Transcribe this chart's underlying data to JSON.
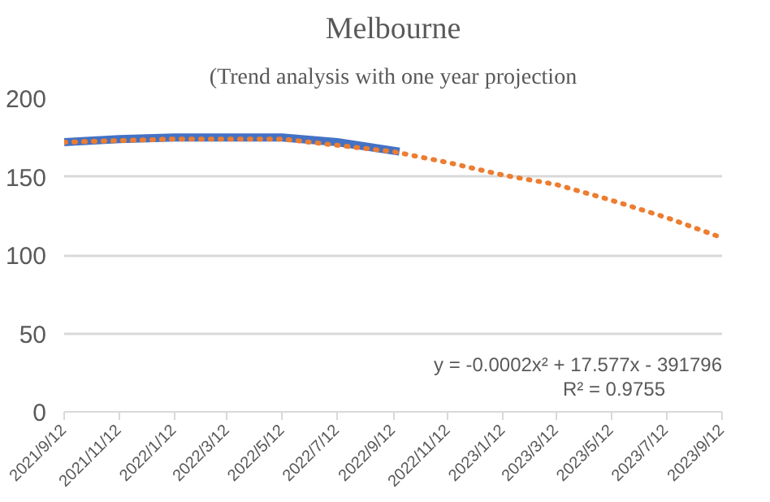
{
  "chart_data": {
    "type": "line",
    "title": "Melbourne",
    "subtitle": "(Trend analysis with one year projection",
    "xlim": [
      "2021-09-12",
      "2023-09-12"
    ],
    "xticks": [
      {
        "value": "2021-09-12",
        "label": "2021/9/12"
      },
      {
        "value": "2021-11-12",
        "label": "2021/11/12"
      },
      {
        "value": "2022-01-12",
        "label": "2022/1/12"
      },
      {
        "value": "2022-03-12",
        "label": "2022/3/12"
      },
      {
        "value": "2022-05-12",
        "label": "2022/5/12"
      },
      {
        "value": "2022-07-12",
        "label": "2022/7/12"
      },
      {
        "value": "2022-09-12",
        "label": "2022/9/12"
      },
      {
        "value": "2022-11-12",
        "label": "2022/11/12"
      },
      {
        "value": "2023-01-12",
        "label": "2023/1/12"
      },
      {
        "value": "2023-03-12",
        "label": "2023/3/12"
      },
      {
        "value": "2023-05-12",
        "label": "2023/5/12"
      },
      {
        "value": "2023-07-12",
        "label": "2023/7/12"
      },
      {
        "value": "2023-09-12",
        "label": "2023/9/12"
      }
    ],
    "ylim": [
      0,
      200
    ],
    "yticks": [
      0,
      50,
      100,
      150,
      200
    ],
    "grid": "y",
    "series": [
      {
        "color": "#4472c4",
        "line_style": "solid",
        "x": [
          "2021-09-12",
          "2021-11-12",
          "2022-01-12",
          "2022-03-12",
          "2022-05-12",
          "2022-07-12",
          "2022-09-19"
        ],
        "values": [
          172,
          174,
          175,
          175,
          175,
          172,
          166
        ]
      },
      {
        "color": "#ed7d31",
        "line_style": "dotted",
        "x": [
          "2021-09-12",
          "2022-01-12",
          "2022-05-12",
          "2022-09-12",
          "2022-11-12",
          "2023-01-12",
          "2023-03-12",
          "2023-05-12",
          "2023-07-12",
          "2023-09-12"
        ],
        "values": [
          172,
          174,
          174,
          166,
          159,
          151,
          145,
          135,
          124,
          111
        ]
      }
    ],
    "annotations": [
      "y = -0.0002x² + 17.577x - 391796",
      "R² = 0.9755"
    ]
  }
}
